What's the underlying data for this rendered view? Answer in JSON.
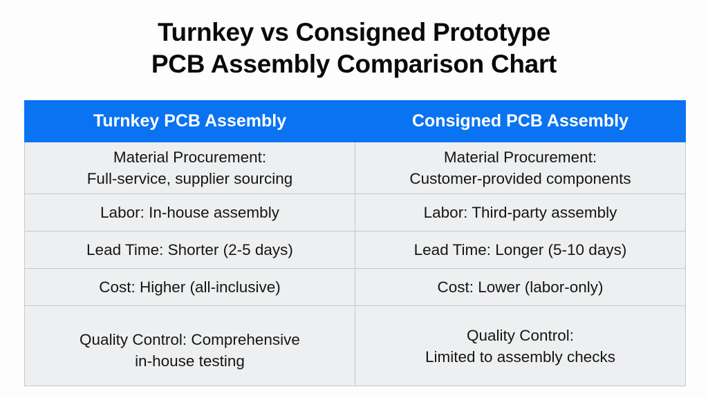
{
  "title": {
    "line1": "Turnkey vs Consigned Prototype",
    "line2": "PCB Assembly Comparison Chart"
  },
  "colors": {
    "header_bg": "#0a73f2",
    "header_text": "#ffffff",
    "cell_bg": "#eeeff0",
    "border": "#c6c8ca",
    "text": "#151515"
  },
  "table": {
    "headers": [
      "Turnkey PCB Assembly",
      "Consigned PCB Assembly"
    ],
    "rows": [
      {
        "turnkey": [
          "Material Procurement:",
          "Full-service, supplier sourcing"
        ],
        "consigned": [
          "Material Procurement:",
          "Customer-provided components"
        ]
      },
      {
        "turnkey": [
          "Labor: In-house assembly"
        ],
        "consigned": [
          "Labor: Third-party assembly"
        ]
      },
      {
        "turnkey": [
          "Lead Time: Shorter (2-5 days)"
        ],
        "consigned": [
          "Lead Time: Longer (5-10 days)"
        ]
      },
      {
        "turnkey": [
          "Cost: Higher (all-inclusive)"
        ],
        "consigned": [
          "Cost: Lower (labor-only)"
        ]
      },
      {
        "turnkey": [
          "Quality Control: Comprehensive",
          "in-house testing"
        ],
        "consigned": [
          "Quality Control:",
          "Limited to assembly checks"
        ]
      }
    ]
  },
  "chart_data": {
    "type": "table",
    "title": "Turnkey vs Consigned Prototype PCB Assembly Comparison Chart",
    "columns": [
      "Turnkey PCB Assembly",
      "Consigned PCB Assembly"
    ],
    "rows": [
      [
        "Material Procurement: Full-service, supplier sourcing",
        "Material Procurement: Customer-provided components"
      ],
      [
        "Labor: In-house assembly",
        "Labor: Third-party assembly"
      ],
      [
        "Lead Time: Shorter (2-5 days)",
        "Lead Time: Longer (5-10 days)"
      ],
      [
        "Cost: Higher (all-inclusive)",
        "Cost: Lower (labor-only)"
      ],
      [
        "Quality Control: Comprehensive in-house testing",
        "Quality Control: Limited to assembly checks"
      ]
    ]
  }
}
